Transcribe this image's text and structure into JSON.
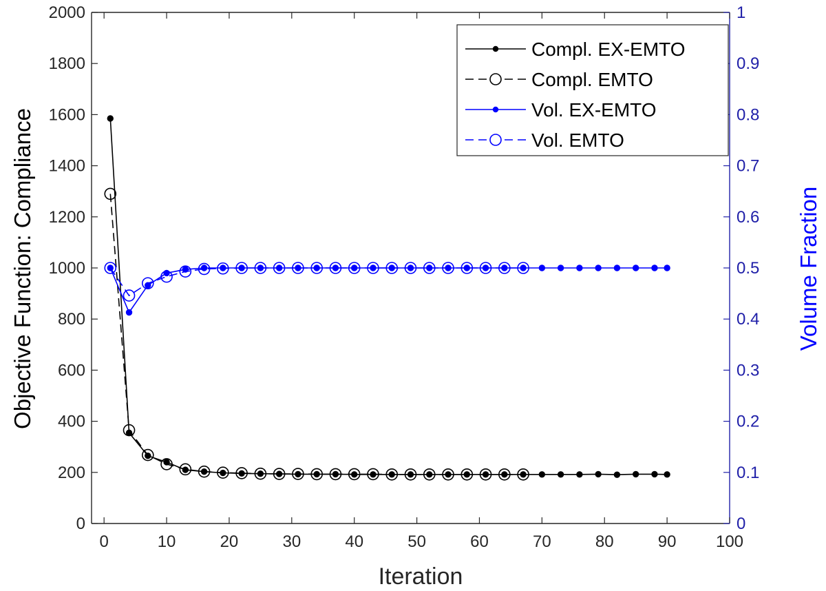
{
  "chart_data": {
    "type": "line",
    "title": "",
    "xlabel": "Iteration",
    "ylabel": "Objective Function: Compliance",
    "y2label": "Volume Fraction",
    "xlim": [
      -2,
      100
    ],
    "ylim": [
      0,
      2000
    ],
    "y2lim": [
      0,
      1
    ],
    "xticks": [
      "0",
      "10",
      "20",
      "30",
      "40",
      "50",
      "60",
      "70",
      "80",
      "90",
      "100"
    ],
    "yticks": [
      "0",
      "200",
      "400",
      "600",
      "800",
      "1000",
      "1200",
      "1400",
      "1600",
      "1800",
      "2000"
    ],
    "y2ticks": [
      "0",
      "0.1",
      "0.2",
      "0.3",
      "0.4",
      "0.5",
      "0.6",
      "0.7",
      "0.8",
      "0.9",
      "1"
    ],
    "grid": false,
    "legend_position": "top-right",
    "colors": {
      "black": "#000000",
      "blue": "#0000ff",
      "axis2": "#1f1fa8"
    },
    "series": [
      {
        "name": "Compl. EX-EMTO",
        "axis": "left",
        "style": "solid",
        "marker": "filled-dot",
        "color": "#000000",
        "x": [
          1,
          4,
          7,
          10,
          13,
          16,
          19,
          22,
          25,
          28,
          31,
          34,
          37,
          40,
          43,
          46,
          49,
          52,
          55,
          58,
          61,
          64,
          67,
          70,
          73,
          76,
          79,
          82,
          85,
          88,
          90
        ],
        "y": [
          1585,
          355,
          265,
          240,
          210,
          203,
          198,
          196,
          195,
          194,
          193,
          193,
          193,
          192,
          192,
          192,
          192,
          192,
          192,
          192,
          192,
          192,
          192,
          192,
          192,
          192,
          193,
          191,
          193,
          193,
          192
        ]
      },
      {
        "name": "Compl. EMTO",
        "axis": "left",
        "style": "dashed",
        "marker": "open-circle",
        "color": "#000000",
        "x": [
          1,
          4,
          7,
          10,
          13,
          16,
          19,
          22,
          25,
          28,
          31,
          34,
          37,
          40,
          43,
          46,
          49,
          52,
          55,
          58,
          61,
          64,
          67
        ],
        "y": [
          1290,
          365,
          268,
          232,
          212,
          203,
          199,
          197,
          195,
          194,
          194,
          193,
          193,
          193,
          193,
          192,
          192,
          192,
          192,
          192,
          192,
          192,
          192
        ]
      },
      {
        "name": "Vol. EX-EMTO",
        "axis": "right",
        "style": "solid",
        "marker": "filled-dot",
        "color": "#0000ff",
        "x": [
          1,
          4,
          7,
          10,
          13,
          16,
          19,
          22,
          25,
          28,
          31,
          34,
          37,
          40,
          43,
          46,
          49,
          52,
          55,
          58,
          61,
          64,
          67,
          70,
          73,
          76,
          79,
          82,
          85,
          88,
          90
        ],
        "y": [
          0.5,
          0.413,
          0.466,
          0.49,
          0.497,
          0.5,
          0.5,
          0.5,
          0.5,
          0.5,
          0.5,
          0.5,
          0.5,
          0.5,
          0.5,
          0.5,
          0.5,
          0.5,
          0.5,
          0.5,
          0.5,
          0.5,
          0.5,
          0.5,
          0.5,
          0.5,
          0.5,
          0.5,
          0.5,
          0.5,
          0.5
        ]
      },
      {
        "name": "Vol. EMTO",
        "axis": "right",
        "style": "dashed",
        "marker": "open-circle",
        "color": "#0000ff",
        "x": [
          1,
          4,
          7,
          10,
          13,
          16,
          19,
          22,
          25,
          28,
          31,
          34,
          37,
          40,
          43,
          46,
          49,
          52,
          55,
          58,
          61,
          64,
          67
        ],
        "y": [
          0.5,
          0.446,
          0.47,
          0.483,
          0.493,
          0.498,
          0.499,
          0.5,
          0.5,
          0.5,
          0.5,
          0.5,
          0.5,
          0.5,
          0.5,
          0.5,
          0.5,
          0.5,
          0.5,
          0.5,
          0.5,
          0.5,
          0.5
        ]
      }
    ]
  }
}
